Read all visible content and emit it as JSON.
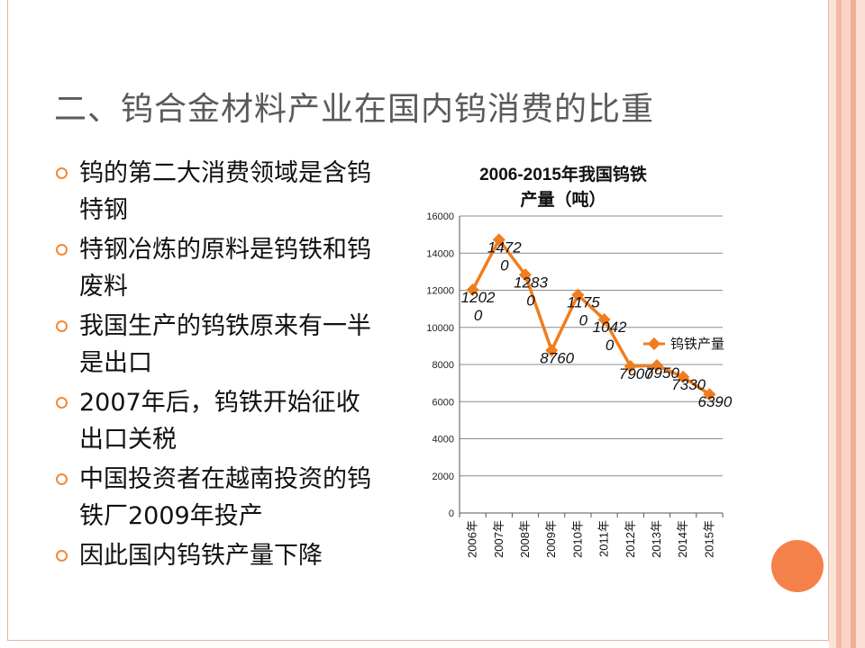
{
  "slide": {
    "title": "二、钨合金材料产业在国内钨消费的比重",
    "bullets": [
      "钨的第二大消费领域是含钨特钢",
      "特钢冶炼的原料是钨铁和钨废料",
      "我国生产的钨铁原来有一半是出口",
      "2007年后，钨铁开始征收出口关税",
      "中国投资者在越南投资的钨铁厂2009年投产",
      "因此国内钨铁产量下降"
    ],
    "accent_color": "#f08a3a"
  },
  "chart_data": {
    "type": "line",
    "title_line1": "2006-2015年我国钨铁",
    "title_line2": "产量（吨）",
    "categories": [
      "2006年",
      "2007年",
      "2008年",
      "2009年",
      "2010年",
      "2011年",
      "2012年",
      "2013年",
      "2014年",
      "2015年"
    ],
    "series": [
      {
        "name": "钨铁产量",
        "values": [
          12020,
          14720,
          12830,
          8760,
          11750,
          10420,
          7900,
          7950,
          7330,
          6390
        ],
        "color": "#f07d1f"
      }
    ],
    "data_labels": [
      "1202\n0",
      "1472\n0",
      "1283\n0",
      "8760",
      "1175\n0",
      "1042\n0",
      "7900",
      "7950",
      "7330",
      "6390"
    ],
    "yticks": [
      0,
      2000,
      4000,
      6000,
      8000,
      10000,
      12000,
      14000,
      16000
    ],
    "ylim": [
      0,
      16000
    ],
    "grid": true,
    "legend_position": "right"
  }
}
